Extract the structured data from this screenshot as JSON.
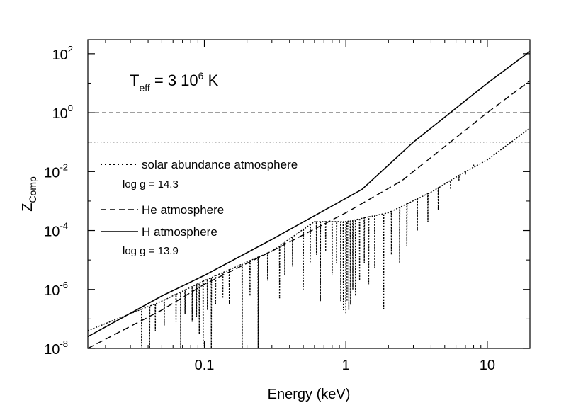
{
  "chart_data": {
    "type": "line",
    "title": "",
    "xlabel": "Energy (keV)",
    "ylabel": "Z",
    "ylabel_sub": "Comp",
    "xscale": "log",
    "yscale": "log",
    "xlim": [
      0.015,
      20
    ],
    "ylim": [
      1e-08,
      300
    ],
    "x_ticks": [
      {
        "value": 0.1,
        "label": "0.1"
      },
      {
        "value": 1,
        "label": "1"
      },
      {
        "value": 10,
        "label": "10"
      }
    ],
    "y_ticks": [
      {
        "value": 1e-08,
        "base": "10",
        "exp": "-8"
      },
      {
        "value": 1e-06,
        "base": "10",
        "exp": "-6"
      },
      {
        "value": 0.0001,
        "base": "10",
        "exp": "-4"
      },
      {
        "value": 0.01,
        "base": "10",
        "exp": "-2"
      },
      {
        "value": 1,
        "base": "10",
        "exp": "0"
      },
      {
        "value": 100,
        "base": "10",
        "exp": "2"
      }
    ],
    "annotation": {
      "main": "T",
      "sub": "eff",
      "mid": " = 3 10",
      "exp": "6",
      "tail": " K"
    },
    "reference_lines": [
      {
        "y": 1,
        "style": "dashed"
      },
      {
        "y": 0.1,
        "style": "dotted"
      }
    ],
    "series": [
      {
        "name": "H atmosphere",
        "style": "solid",
        "x": [
          0.015,
          0.05,
          0.1,
          0.3,
          1.3,
          3,
          10,
          20
        ],
        "y": [
          2.5e-08,
          6e-07,
          3e-06,
          5e-05,
          0.0025,
          0.1,
          10,
          120
        ]
      },
      {
        "name": "He atmosphere",
        "style": "dashed",
        "x": [
          0.015,
          0.05,
          0.1,
          0.3,
          1,
          2.5,
          10,
          20
        ],
        "y": [
          1e-08,
          2e-07,
          1.5e-06,
          2e-05,
          0.0004,
          0.005,
          1,
          12
        ]
      },
      {
        "name": "solar abundance atmosphere",
        "style": "dotted",
        "x": [
          0.015,
          0.05,
          0.1,
          0.3,
          0.6,
          1,
          2,
          4,
          7,
          10,
          20
        ],
        "y": [
          4e-08,
          4e-07,
          2e-06,
          2e-05,
          0.0002,
          0.0002,
          0.0004,
          0.002,
          0.01,
          0.025,
          0.3
        ],
        "absorption_lines": [
          {
            "x": 0.036,
            "depth": 1e-08
          },
          {
            "x": 0.041,
            "depth": 1e-08
          },
          {
            "x": 0.045,
            "depth": 4e-08
          },
          {
            "x": 0.052,
            "depth": 6e-08
          },
          {
            "x": 0.063,
            "depth": 8e-08
          },
          {
            "x": 0.068,
            "depth": 1e-08
          },
          {
            "x": 0.073,
            "depth": 1.5e-07
          },
          {
            "x": 0.082,
            "depth": 8e-08
          },
          {
            "x": 0.088,
            "depth": 1.2e-07
          },
          {
            "x": 0.092,
            "depth": 3e-08
          },
          {
            "x": 0.098,
            "depth": 1.2e-08
          },
          {
            "x": 0.105,
            "depth": 2e-07
          },
          {
            "x": 0.112,
            "depth": 1e-08
          },
          {
            "x": 0.12,
            "depth": 3e-07
          },
          {
            "x": 0.135,
            "depth": 5e-07
          },
          {
            "x": 0.15,
            "depth": 3e-07
          },
          {
            "x": 0.185,
            "depth": 1e-08
          },
          {
            "x": 0.21,
            "depth": 6e-07
          },
          {
            "x": 0.24,
            "depth": 1e-08
          },
          {
            "x": 0.28,
            "depth": 2e-06
          },
          {
            "x": 0.34,
            "depth": 5e-07
          },
          {
            "x": 0.37,
            "depth": 3e-06
          },
          {
            "x": 0.42,
            "depth": 6e-06
          },
          {
            "x": 0.5,
            "depth": 1e-06
          },
          {
            "x": 0.56,
            "depth": 8e-06
          },
          {
            "x": 0.62,
            "depth": 1.5e-05
          },
          {
            "x": 0.66,
            "depth": 4e-07
          },
          {
            "x": 0.72,
            "depth": 2e-05
          },
          {
            "x": 0.8,
            "depth": 3e-06
          },
          {
            "x": 0.86,
            "depth": 8e-06
          },
          {
            "x": 0.92,
            "depth": 4e-07
          },
          {
            "x": 0.96,
            "depth": 2e-07
          },
          {
            "x": 1.0,
            "depth": 1.5e-07
          },
          {
            "x": 1.02,
            "depth": 4e-07
          },
          {
            "x": 1.05,
            "depth": 2e-07
          },
          {
            "x": 1.08,
            "depth": 3e-07
          },
          {
            "x": 1.12,
            "depth": 1e-06
          },
          {
            "x": 1.17,
            "depth": 6e-07
          },
          {
            "x": 1.25,
            "depth": 2e-06
          },
          {
            "x": 1.35,
            "depth": 8e-06
          },
          {
            "x": 1.45,
            "depth": 1.5e-06
          },
          {
            "x": 1.6,
            "depth": 5e-06
          },
          {
            "x": 1.85,
            "depth": 2e-07
          },
          {
            "x": 2.1,
            "depth": 1.5e-05
          },
          {
            "x": 2.4,
            "depth": 8e-06
          },
          {
            "x": 2.7,
            "depth": 3e-05
          },
          {
            "x": 3.2,
            "depth": 0.0001
          },
          {
            "x": 3.8,
            "depth": 0.0002
          },
          {
            "x": 4.5,
            "depth": 0.0005
          },
          {
            "x": 5.5,
            "depth": 0.0025
          },
          {
            "x": 6.3,
            "depth": 0.005
          },
          {
            "x": 7.0,
            "depth": 0.008
          },
          {
            "x": 8.0,
            "depth": 0.018
          }
        ]
      }
    ],
    "legend": [
      {
        "label": "solar abundance atmosphere",
        "style": "dotted"
      },
      {
        "label": "He atmosphere",
        "style": "dashed"
      },
      {
        "label": "H atmosphere",
        "style": "solid"
      }
    ],
    "notes": [
      "log g = 14.3",
      "log g = 13.9"
    ]
  }
}
